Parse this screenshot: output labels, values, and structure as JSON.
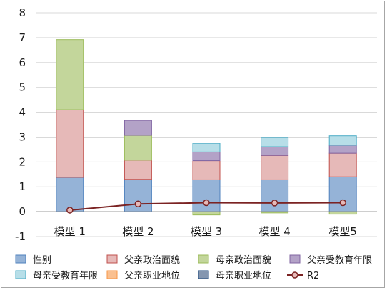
{
  "chart_data": {
    "type": "bar",
    "stacked": true,
    "categories": [
      "模型 1",
      "模型 2",
      "模型 3",
      "模型 4",
      "模型5"
    ],
    "ylim": [
      -1,
      8
    ],
    "yticks": [
      -1,
      0,
      1,
      2,
      3,
      4,
      5,
      6,
      7,
      8
    ],
    "grid": true,
    "legend_position": "bottom",
    "series": [
      {
        "name": "性别",
        "kind": "bar",
        "values": [
          1.38,
          1.3,
          1.28,
          1.28,
          1.4
        ],
        "color": "#95b3d7",
        "stroke": "#4f81bd"
      },
      {
        "name": "父亲政治面貌",
        "kind": "bar",
        "values": [
          2.72,
          0.77,
          0.77,
          0.98,
          0.95
        ],
        "color": "#e6b9b8",
        "stroke": "#c0504d"
      },
      {
        "name": "母亲政治面貌",
        "kind": "bar",
        "values": [
          2.82,
          1.0,
          -0.13,
          -0.05,
          -0.1
        ],
        "color": "#c3d69b",
        "stroke": "#9bbb59"
      },
      {
        "name": "父亲受教育年限",
        "kind": "bar",
        "values": [
          0,
          0.6,
          0.35,
          0.35,
          0.32
        ],
        "color": "#b3a2c7",
        "stroke": "#8064a2"
      },
      {
        "name": "母亲受教育年限",
        "kind": "bar",
        "values": [
          0,
          0,
          0.35,
          0.38,
          0.38
        ],
        "color": "#b7dee8",
        "stroke": "#4bacc6"
      },
      {
        "name": "父亲职业地位",
        "kind": "bar",
        "values": [
          0,
          0,
          0,
          0,
          0
        ],
        "color": "#fac090",
        "stroke": "#f79646"
      },
      {
        "name": "母亲职业地位",
        "kind": "bar",
        "values": [
          0,
          0,
          0,
          0,
          0
        ],
        "color": "#8496b0",
        "stroke": "#1f497d"
      },
      {
        "name": "R2",
        "kind": "line",
        "values": [
          0.06,
          0.31,
          0.36,
          0.35,
          0.36
        ],
        "color": "#7b2323"
      }
    ]
  }
}
